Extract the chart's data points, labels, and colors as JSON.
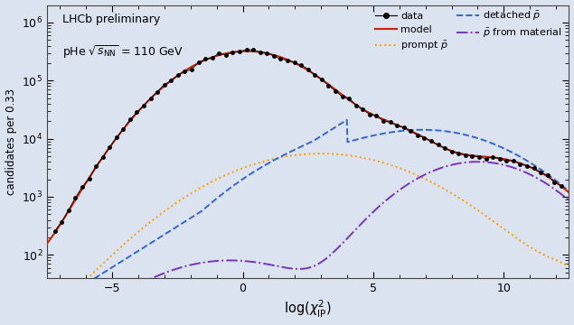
{
  "title_line1": "LHCb preliminary",
  "title_line2": "pHe $\\sqrt{s_{\\mathrm{NN}}}$ = 110 GeV",
  "xlabel": "$\\log(\\chi^2_{\\mathrm{IP}})$",
  "ylabel": "candidates per 0.33",
  "bg_color": "#dce3f0",
  "xmin": -7.5,
  "xmax": 12.5,
  "ymin": 40,
  "ymax": 2000000,
  "xticks": [
    -5,
    0,
    5,
    10
  ]
}
